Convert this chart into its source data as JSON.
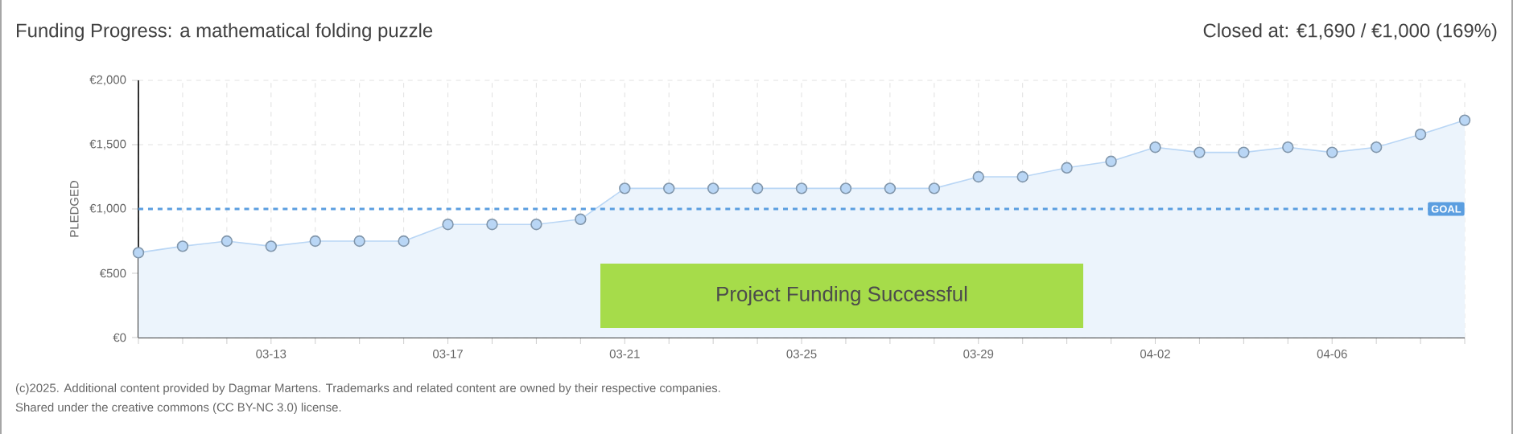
{
  "chart_data": {
    "type": "area",
    "title": "Funding Progress: a mathematical folding puzzle",
    "subtitle": "Closed at:  €1,690 / €1,000 (169%)",
    "ylabel": "PLEDGED",
    "categories": [
      null,
      null,
      null,
      "03-13",
      null,
      null,
      null,
      "03-17",
      null,
      null,
      null,
      "03-21",
      null,
      null,
      null,
      "03-25",
      null,
      null,
      null,
      "03-29",
      null,
      null,
      null,
      "04-02",
      null,
      null,
      null,
      "04-06",
      null,
      null,
      null
    ],
    "series": [
      {
        "color": "#b9d6f5",
        "values": [
          660,
          710,
          750,
          710,
          750,
          750,
          750,
          880,
          880,
          880,
          920,
          1160,
          1160,
          1160,
          1160,
          1160,
          1160,
          1160,
          1160,
          1250,
          1250,
          1320,
          1370,
          1480,
          1440,
          1440,
          1480,
          1440,
          1480,
          1580,
          1690
        ]
      }
    ],
    "ylim": [
      0,
      2000
    ],
    "yticks": [
      {
        "value": 0,
        "label": "€0"
      },
      {
        "value": 500,
        "label": "€500"
      },
      {
        "value": 1000,
        "label": "€1,000"
      },
      {
        "value": 1500,
        "label": "€1,500"
      },
      {
        "value": 2000,
        "label": "€2,000"
      }
    ],
    "grid": true,
    "marker": "circle",
    "ref_lines": [
      {
        "axis": "y",
        "value": 1000,
        "label": "GOAL",
        "color": "#5b9ee0",
        "line_style": "dashed"
      }
    ],
    "annotations": [
      "Project Funding Successful",
      "(c)2025. Additional content provided by Dagmar Martens. Trademarks and related content are owned by their respective companies.",
      "Shared under the creative commons (CC BY-NC 3.0) license."
    ]
  }
}
